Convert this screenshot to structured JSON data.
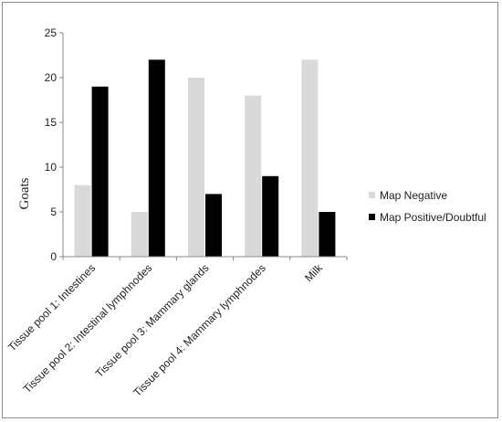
{
  "chart_data": {
    "type": "bar",
    "title": "",
    "xlabel": "",
    "ylabel": "Goats",
    "ylim": [
      0,
      25
    ],
    "yticks": [
      0,
      5,
      10,
      15,
      20,
      25
    ],
    "grid": false,
    "legend_position": "right",
    "categories": [
      "Tissue pool 1: Intestines",
      "Tissue pool 2: Intestinal lymphnodes",
      "Tissue pool 3: Mammary glands",
      "Tissue pool 4: Mammary lymphnodes",
      "Milk"
    ],
    "series": [
      {
        "name": "Map Negative",
        "color": "#d9d9d9",
        "values": [
          8,
          5,
          20,
          18,
          22
        ]
      },
      {
        "name": "Map Positive/Doubtful",
        "color": "#000000",
        "values": [
          19,
          22,
          7,
          9,
          5
        ]
      }
    ]
  }
}
